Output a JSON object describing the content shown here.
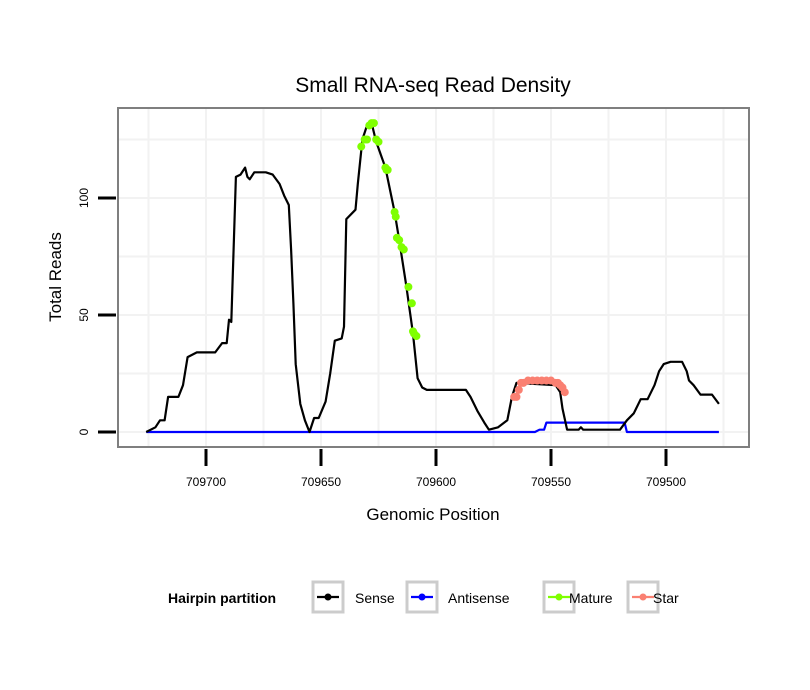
{
  "chart_data": {
    "type": "line",
    "title": "Small RNA-seq Read Density",
    "xlabel": "Genomic Position",
    "ylabel": "Total Reads",
    "x_reversed": true,
    "xlim": [
      709726,
      709475
    ],
    "ylim": [
      0,
      135
    ],
    "x_ticks": [
      709700,
      709650,
      709600,
      709550,
      709500
    ],
    "x_tick_labels": [
      "709700",
      "709650",
      "709600",
      "709550",
      "709500"
    ],
    "y_ticks": [
      0,
      50,
      100
    ],
    "y_tick_labels": [
      "0",
      "50",
      "100"
    ],
    "grid": true,
    "legend": {
      "title": "Hairpin partition",
      "placement": "bottom",
      "entries": [
        {
          "label": "Sense",
          "color": "#000000"
        },
        {
          "label": "Antisense",
          "color": "#0000ff"
        },
        {
          "label": "Mature",
          "color": "#7fff00"
        },
        {
          "label": "Star",
          "color": "#fa8072"
        }
      ]
    },
    "series": [
      {
        "name": "Sense",
        "color": "#000000",
        "style": "line",
        "x": [
          709726,
          709722,
          709720,
          709718,
          709716.5,
          709712,
          709710,
          709708,
          709704,
          709696,
          709693,
          709691,
          709690,
          709689,
          709687,
          709685,
          709683,
          709682,
          709681,
          709679,
          709677,
          709674,
          709671,
          709668,
          709666,
          709664,
          709663,
          709662,
          709661,
          709659,
          709657,
          709655,
          709653,
          709651,
          709648,
          709646,
          709644,
          709641,
          709640,
          709639,
          709635,
          709634,
          709632,
          709630,
          709628,
          709626,
          709622,
          709618,
          709616,
          709613,
          709610,
          709608,
          709606,
          709604,
          709587,
          709585,
          709582,
          709579,
          709577,
          709573,
          709569,
          709567,
          709565,
          709548,
          709546,
          709545,
          709543,
          709538,
          709537,
          709536,
          709530,
          709522,
          709520,
          709517,
          709514,
          709511,
          709508,
          709505,
          709503,
          709501,
          709498,
          709493,
          709491,
          709490,
          709488,
          709485,
          709480,
          709477
        ],
        "y": [
          0,
          2,
          5,
          5,
          15,
          15,
          20,
          32,
          34,
          34,
          38,
          38,
          48,
          47,
          109,
          110,
          113,
          109,
          108,
          111,
          111,
          111,
          110,
          106,
          101,
          97,
          78,
          55,
          29,
          12,
          5,
          0,
          6,
          6,
          13,
          25,
          39,
          40,
          45,
          91,
          95,
          106,
          125,
          131,
          132,
          124,
          113,
          94,
          82,
          63,
          42,
          23,
          19,
          18,
          18,
          15,
          9,
          4,
          1,
          2,
          5,
          15,
          21,
          20,
          17,
          10,
          1,
          1,
          2,
          1,
          1,
          1,
          1,
          5,
          8,
          14,
          14,
          20,
          26,
          29,
          30,
          30,
          26,
          22,
          20,
          16,
          16,
          12
        ]
      },
      {
        "name": "Antisense",
        "color": "#0000ff",
        "style": "line",
        "x": [
          709726,
          709557,
          709555,
          709553,
          709552,
          709518,
          709517,
          709477
        ],
        "y": [
          0,
          0,
          1,
          1,
          4,
          4,
          0,
          0
        ]
      },
      {
        "name": "Mature",
        "color": "#7fff00",
        "style": "points",
        "x": [
          709632.5,
          709631,
          709630,
          709629,
          709628,
          709627,
          709626,
          709625,
          709622,
          709621.5,
          709621,
          709618,
          709617.5,
          709617,
          709616,
          709615,
          709614,
          709612,
          709610.5,
          709610,
          709609.5,
          709608.5
        ],
        "y": [
          122,
          125,
          125,
          131,
          132,
          132,
          125,
          124,
          113,
          112,
          112,
          94,
          92,
          83,
          82,
          79,
          78,
          62,
          55,
          43,
          42,
          41
        ]
      },
      {
        "name": "Star",
        "color": "#fa8072",
        "style": "points",
        "x": [
          709566,
          709565,
          709564,
          709563,
          709562,
          709560,
          709558,
          709556,
          709554,
          709552,
          709550,
          709548,
          709547,
          709546,
          709545,
          709544
        ],
        "y": [
          15,
          15,
          18,
          21,
          21,
          22,
          22,
          22,
          22,
          22,
          22,
          21,
          21,
          20,
          19,
          17
        ]
      }
    ]
  }
}
